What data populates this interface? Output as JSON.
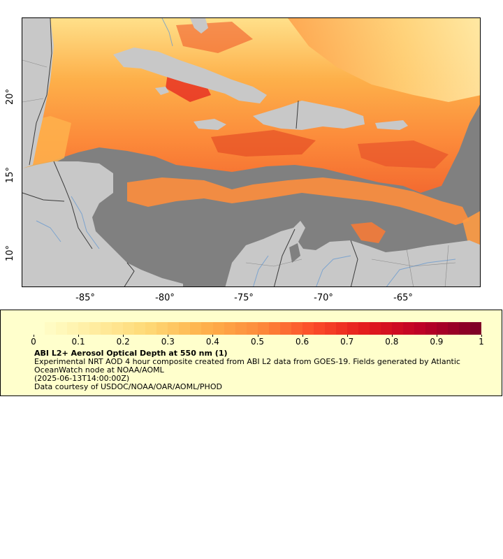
{
  "map": {
    "x_ticks": [
      "-85°",
      "-80°",
      "-75°",
      "-70°",
      "-65°"
    ],
    "y_ticks": [
      "20°",
      "15°",
      "10°"
    ],
    "colors": {
      "ocean_no_data": "#808080",
      "land": "#c8c8c8",
      "rivers": "#6a9bd0",
      "borders": "#222222"
    }
  },
  "legend": {
    "colorbar_ticks": [
      "0",
      "0.1",
      "0.2",
      "0.3",
      "0.4",
      "0.5",
      "0.6",
      "0.7",
      "0.8",
      "0.9",
      "1"
    ],
    "colorbar_range": [
      0,
      1
    ],
    "colorbar_colors": [
      "#ffffcc",
      "#ffeda0",
      "#fed976",
      "#feb24c",
      "#fd8d3c",
      "#fc4e2a",
      "#e31a1c",
      "#bd0026",
      "#800026"
    ],
    "title": "ABI L2+ Aerosol Optical Depth at 550 nm (1)",
    "line1": "Experimental NRT AOD 4 hour composite created from ABI L2 data from GOES-19. Fields generated by Atlantic OceanWatch node at NOAA/AOML",
    "line2": "(2025-06-13T14:00:00Z)",
    "line3": "Data courtesy of USDOC/NOAA/OAR/AOML/PHOD"
  }
}
